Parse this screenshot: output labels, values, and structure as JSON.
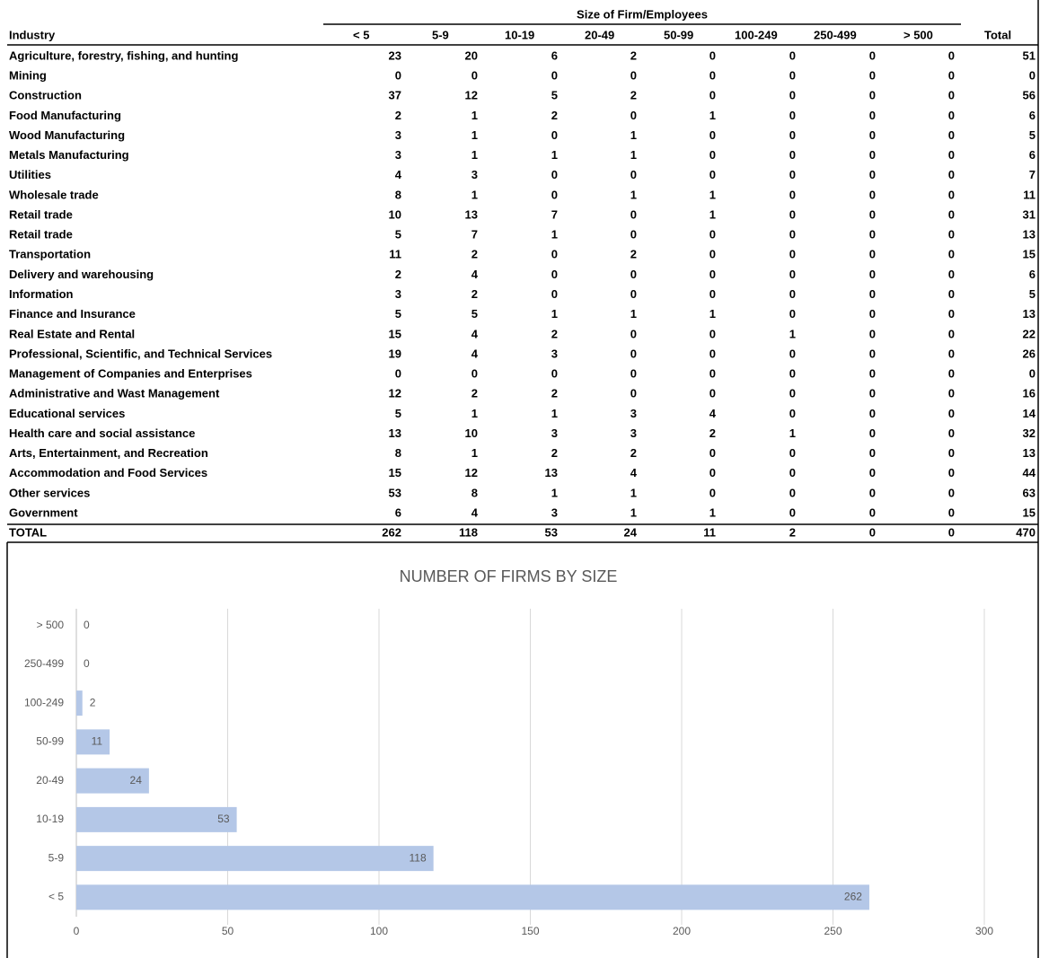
{
  "table": {
    "group_header": "Size of Firm/Employees",
    "columns": [
      "Industry",
      "< 5",
      "5-9",
      "10-19",
      "20-49",
      "50-99",
      "100-249",
      "250-499",
      "> 500",
      "Total"
    ],
    "rows": [
      [
        "Agriculture, forestry, fishing, and hunting",
        23,
        20,
        6,
        2,
        0,
        0,
        0,
        0,
        51
      ],
      [
        "Mining",
        0,
        0,
        0,
        0,
        0,
        0,
        0,
        0,
        0
      ],
      [
        "Construction",
        37,
        12,
        5,
        2,
        0,
        0,
        0,
        0,
        56
      ],
      [
        "Food Manufacturing",
        2,
        1,
        2,
        0,
        1,
        0,
        0,
        0,
        6
      ],
      [
        "Wood Manufacturing",
        3,
        1,
        0,
        1,
        0,
        0,
        0,
        0,
        5
      ],
      [
        "Metals Manufacturing",
        3,
        1,
        1,
        1,
        0,
        0,
        0,
        0,
        6
      ],
      [
        "Utilities",
        4,
        3,
        0,
        0,
        0,
        0,
        0,
        0,
        7
      ],
      [
        "Wholesale trade",
        8,
        1,
        0,
        1,
        1,
        0,
        0,
        0,
        11
      ],
      [
        "Retail trade",
        10,
        13,
        7,
        0,
        1,
        0,
        0,
        0,
        31
      ],
      [
        "Retail trade",
        5,
        7,
        1,
        0,
        0,
        0,
        0,
        0,
        13
      ],
      [
        "Transportation",
        11,
        2,
        0,
        2,
        0,
        0,
        0,
        0,
        15
      ],
      [
        "Delivery and warehousing",
        2,
        4,
        0,
        0,
        0,
        0,
        0,
        0,
        6
      ],
      [
        "Information",
        3,
        2,
        0,
        0,
        0,
        0,
        0,
        0,
        5
      ],
      [
        "Finance and Insurance",
        5,
        5,
        1,
        1,
        1,
        0,
        0,
        0,
        13
      ],
      [
        "Real Estate and Rental",
        15,
        4,
        2,
        0,
        0,
        1,
        0,
        0,
        22
      ],
      [
        "Professional, Scientific, and Technical Services",
        19,
        4,
        3,
        0,
        0,
        0,
        0,
        0,
        26
      ],
      [
        "Management of Companies and Enterprises",
        0,
        0,
        0,
        0,
        0,
        0,
        0,
        0,
        0
      ],
      [
        "Administrative and Wast Management",
        12,
        2,
        2,
        0,
        0,
        0,
        0,
        0,
        16
      ],
      [
        "Educational services",
        5,
        1,
        1,
        3,
        4,
        0,
        0,
        0,
        14
      ],
      [
        "Health care and social assistance",
        13,
        10,
        3,
        3,
        2,
        1,
        0,
        0,
        32
      ],
      [
        "Arts, Entertainment, and Recreation",
        8,
        1,
        2,
        2,
        0,
        0,
        0,
        0,
        13
      ],
      [
        "Accommodation and Food Services",
        15,
        12,
        13,
        4,
        0,
        0,
        0,
        0,
        44
      ],
      [
        "Other services",
        53,
        8,
        1,
        1,
        0,
        0,
        0,
        0,
        63
      ],
      [
        "Government",
        6,
        4,
        3,
        1,
        1,
        0,
        0,
        0,
        15
      ]
    ],
    "total_row": [
      "TOTAL",
      262,
      118,
      53,
      24,
      11,
      2,
      0,
      0,
      470
    ]
  },
  "chart_data": {
    "type": "bar",
    "orientation": "horizontal",
    "title": "NUMBER OF FIRMS BY SIZE",
    "categories": [
      "< 5",
      "5-9",
      "10-19",
      "20-49",
      "50-99",
      "100-249",
      "250-499",
      "> 500"
    ],
    "values": [
      262,
      118,
      53,
      24,
      11,
      2,
      0,
      0
    ],
    "color": "#b4c7e7",
    "xlim": [
      0,
      300
    ],
    "xticks": [
      0,
      50,
      100,
      150,
      200,
      250,
      300
    ],
    "grid": true
  }
}
